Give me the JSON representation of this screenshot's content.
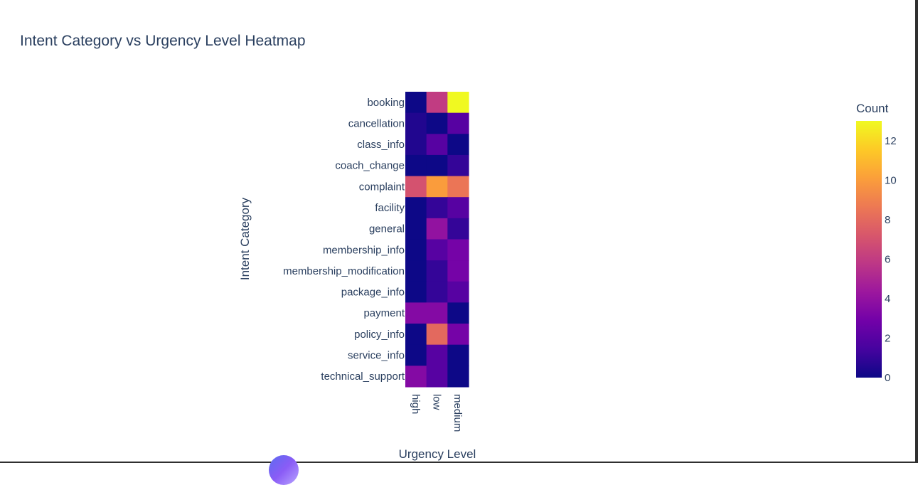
{
  "chart_data": {
    "type": "heatmap",
    "title": "Intent Category vs Urgency Level Heatmap",
    "xlabel": "Urgency Level",
    "ylabel": "Intent Category",
    "x": [
      "high",
      "low",
      "medium"
    ],
    "y": [
      "booking",
      "cancellation",
      "class_info",
      "coach_change",
      "complaint",
      "facility",
      "general",
      "membership_info",
      "membership_modification",
      "package_info",
      "payment",
      "policy_info",
      "service_info",
      "technical_support"
    ],
    "z": [
      [
        0,
        6,
        13
      ],
      [
        0.5,
        0,
        2
      ],
      [
        0.5,
        2,
        0
      ],
      [
        0,
        0,
        1
      ],
      [
        7,
        10,
        8.5
      ],
      [
        0,
        1,
        2
      ],
      [
        0,
        4,
        1
      ],
      [
        0,
        2,
        3
      ],
      [
        0,
        1,
        3
      ],
      [
        0,
        1,
        2
      ],
      [
        3.5,
        3.5,
        0
      ],
      [
        0,
        8,
        3
      ],
      [
        0,
        2,
        0
      ],
      [
        3.5,
        2,
        0
      ]
    ],
    "colorbar": {
      "title": "Count",
      "min": 0,
      "max": 13,
      "ticks": [
        0,
        2,
        4,
        6,
        8,
        10,
        12
      ]
    },
    "colorscale": [
      "#0d0887",
      "#46039f",
      "#7201a8",
      "#9c179e",
      "#bd3786",
      "#d8576b",
      "#ed7953",
      "#fb9f3a",
      "#fdca26",
      "#f0f921"
    ]
  }
}
